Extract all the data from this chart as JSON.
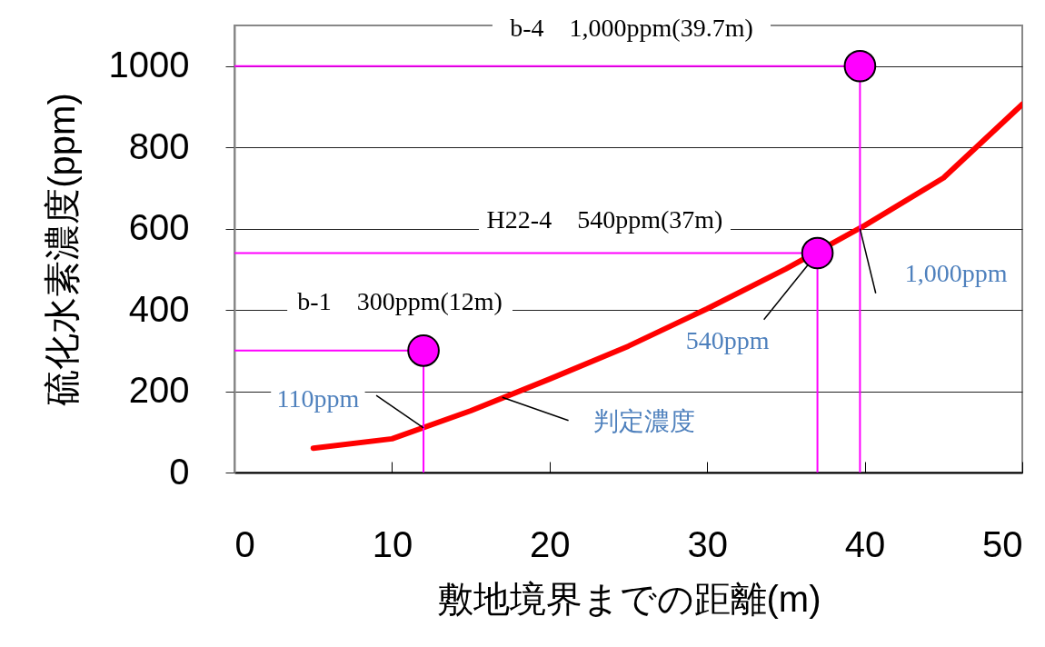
{
  "chart_data": {
    "type": "line",
    "xlabel": "敷地境界までの距離(m)",
    "ylabel": "硫化水素濃度(ppm)",
    "xlim": [
      0,
      50
    ],
    "xticks": [
      0,
      10,
      20,
      30,
      40,
      50
    ],
    "ylim": [
      0,
      1100
    ],
    "yticks": [
      0,
      200,
      400,
      600,
      800,
      1000
    ],
    "grid": "y",
    "series": [
      {
        "color": "#ff0000",
        "marker": "none",
        "x": [
          5,
          10,
          15,
          20,
          25,
          30,
          35,
          40,
          45,
          50
        ],
        "values": [
          60,
          83,
          152,
          230,
          311,
          403,
          501,
          608,
          725,
          906
        ]
      },
      {
        "color": "#ff00ff",
        "marker": "none",
        "x": [
          0,
          12,
          12
        ],
        "values": [
          300,
          300,
          0
        ]
      },
      {
        "color": "#ff00ff",
        "marker": "none",
        "x": [
          0,
          37,
          37
        ],
        "values": [
          540,
          540,
          0
        ]
      },
      {
        "color": "#ff00ff",
        "marker": "none",
        "x": [
          0,
          39.7,
          39.7
        ],
        "values": [
          1000,
          1000,
          0
        ]
      },
      {
        "type": "scatter",
        "color": "#ff00ff",
        "marker": "circle",
        "x": [
          12,
          37,
          39.7
        ],
        "values": [
          300,
          540,
          1000
        ]
      }
    ],
    "annotations": [
      "b-4　1,000ppm(39.7m)",
      "H22-4　540ppm(37m)",
      "b-1　300ppm(12m)",
      {
        "text": "110ppm",
        "x": 12,
        "y": 110
      },
      {
        "text": "540ppm",
        "x": 37,
        "y": 540
      },
      {
        "text": "1,000ppm",
        "x": 39.7,
        "y": 600
      },
      {
        "text": "判定濃度",
        "x": 17,
        "y": 185
      }
    ]
  }
}
